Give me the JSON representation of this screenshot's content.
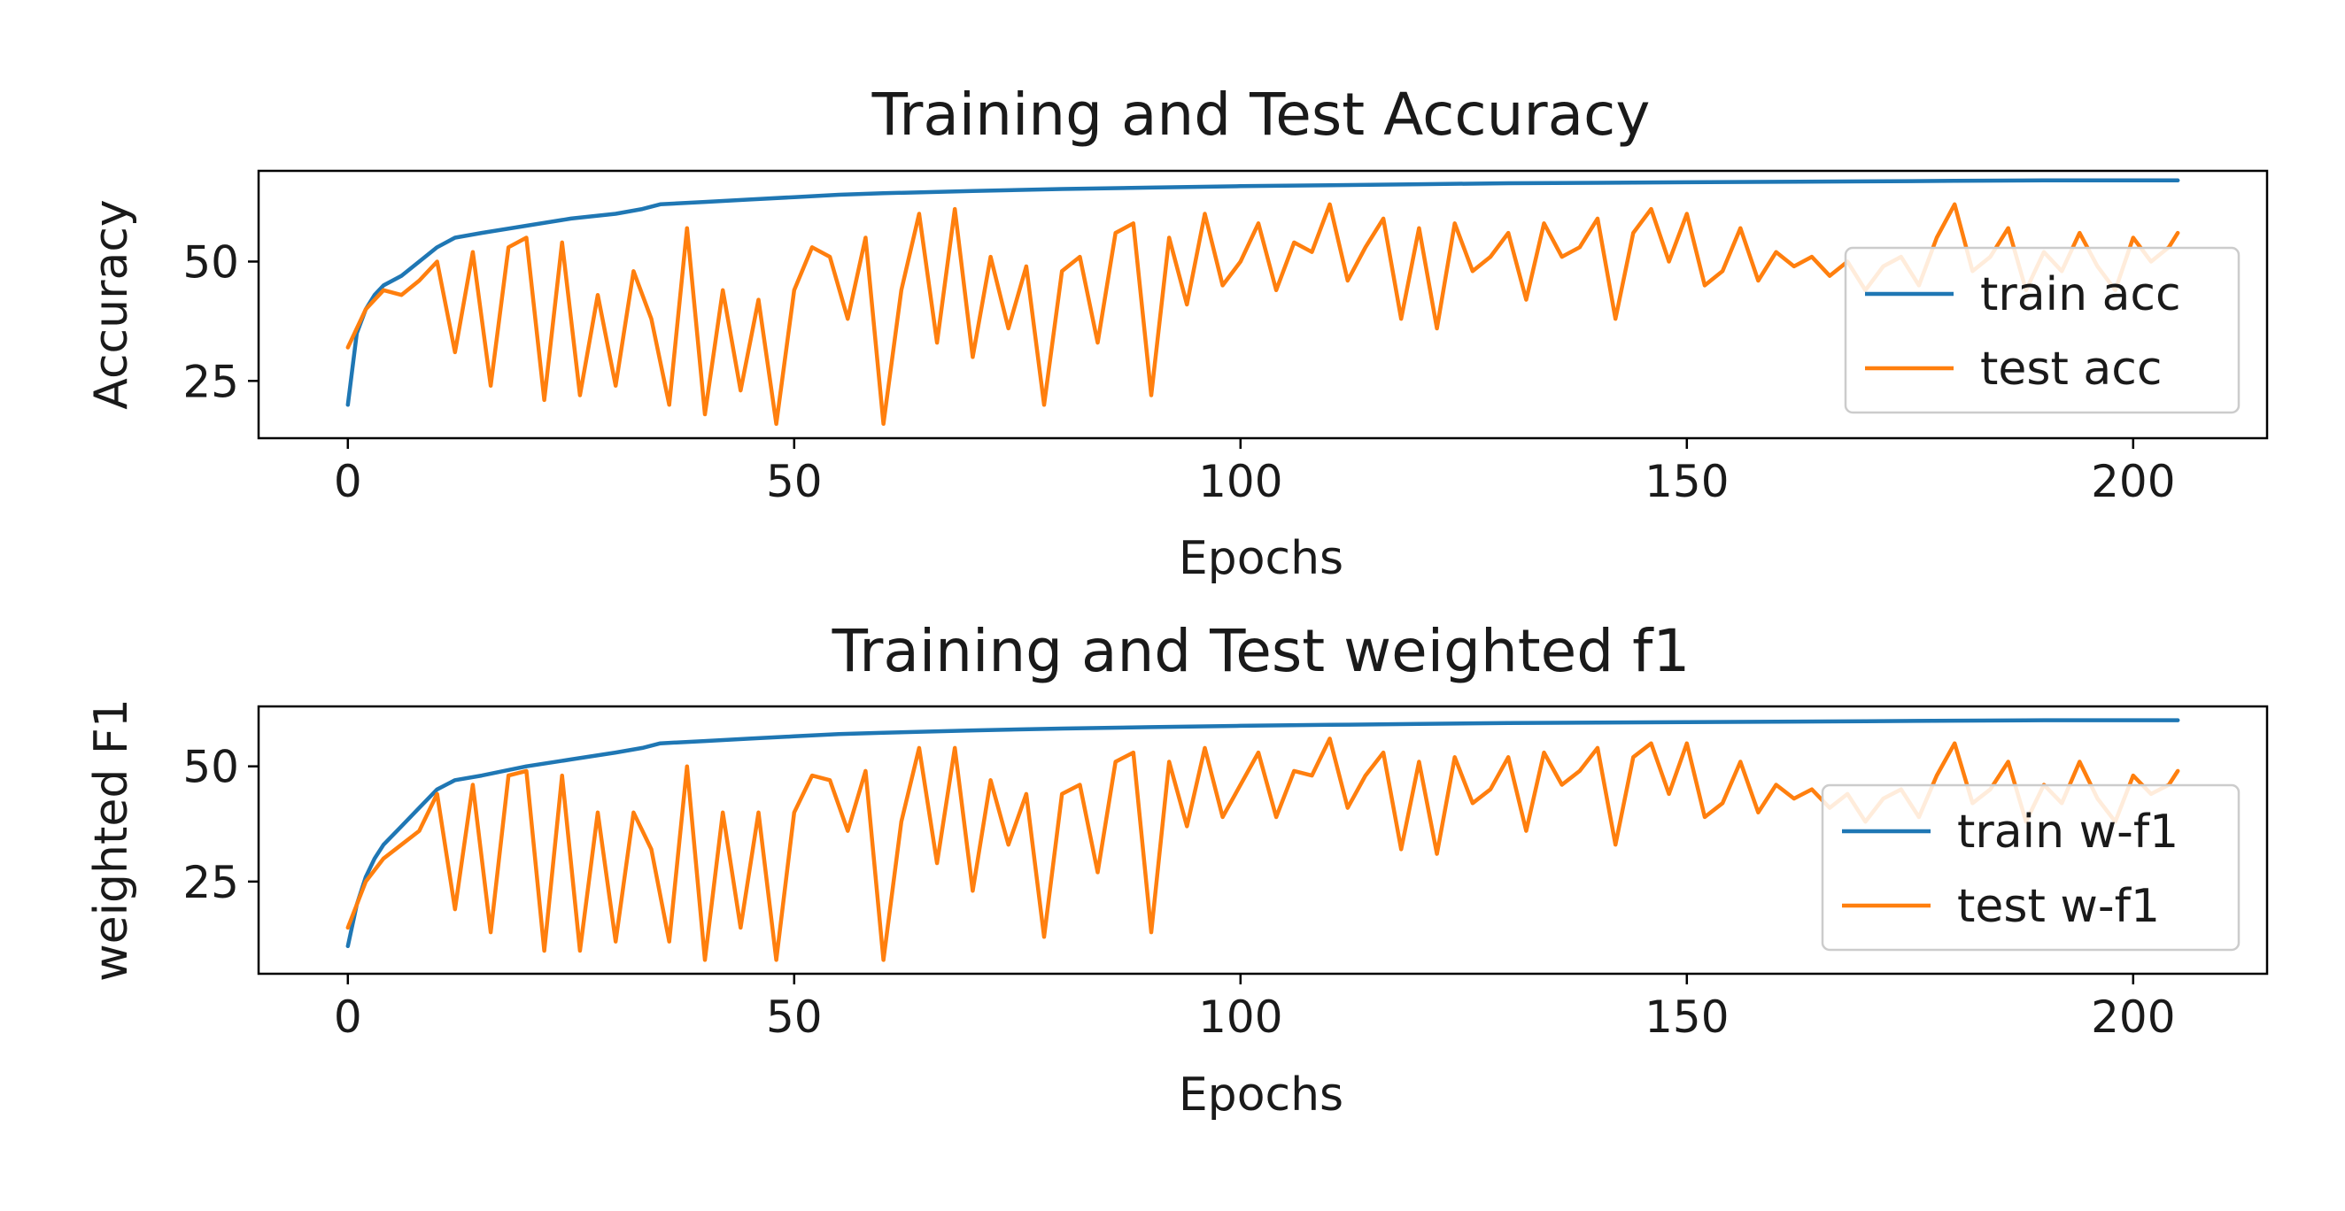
{
  "colors": {
    "train": "#1f77b4",
    "test": "#ff7f0e"
  },
  "chart_data": [
    {
      "type": "line",
      "title": "Training and Test Accuracy",
      "xlabel": "Epochs",
      "ylabel": "Accuracy",
      "xlim": [
        -10,
        215
      ],
      "ylim": [
        13,
        69
      ],
      "xticks": [
        0,
        50,
        100,
        150,
        200
      ],
      "yticks": [
        25,
        50
      ],
      "legend_position": "right",
      "grid": false,
      "series": [
        {
          "name": "train acc",
          "color_key": "train",
          "x": [
            0,
            1,
            2,
            3,
            4,
            6,
            8,
            10,
            12,
            15,
            20,
            25,
            30,
            33,
            35,
            40,
            45,
            50,
            55,
            60,
            70,
            80,
            90,
            100,
            110,
            120,
            130,
            140,
            150,
            160,
            170,
            180,
            190,
            200,
            205
          ],
          "y": [
            20,
            35,
            40,
            43,
            45,
            47,
            50,
            53,
            55,
            56,
            57.5,
            59,
            60,
            61,
            62,
            62.5,
            63,
            63.5,
            64,
            64.3,
            64.8,
            65.2,
            65.5,
            65.8,
            66,
            66.2,
            66.4,
            66.5,
            66.6,
            66.7,
            66.8,
            66.9,
            67,
            67,
            67
          ]
        },
        {
          "name": "test acc",
          "color_key": "test",
          "x": [
            0,
            2,
            4,
            6,
            8,
            10,
            12,
            14,
            16,
            18,
            20,
            22,
            24,
            26,
            28,
            30,
            32,
            34,
            36,
            38,
            40,
            42,
            44,
            46,
            48,
            50,
            52,
            54,
            56,
            58,
            60,
            62,
            64,
            66,
            68,
            70,
            72,
            74,
            76,
            78,
            80,
            82,
            84,
            86,
            88,
            90,
            92,
            94,
            96,
            98,
            100,
            102,
            104,
            106,
            108,
            110,
            112,
            114,
            116,
            118,
            120,
            122,
            124,
            126,
            128,
            130,
            132,
            134,
            136,
            138,
            140,
            142,
            144,
            146,
            148,
            150,
            152,
            154,
            156,
            158,
            160,
            162,
            164,
            166,
            168,
            170,
            172,
            174,
            176,
            178,
            180,
            182,
            184,
            186,
            188,
            190,
            192,
            194,
            196,
            198,
            200,
            202,
            204,
            205
          ],
          "y": [
            32,
            40,
            44,
            43,
            46,
            50,
            31,
            52,
            24,
            53,
            55,
            21,
            54,
            22,
            43,
            24,
            48,
            38,
            20,
            57,
            18,
            44,
            23,
            42,
            16,
            44,
            53,
            51,
            38,
            55,
            16,
            44,
            60,
            33,
            61,
            30,
            51,
            36,
            49,
            20,
            48,
            51,
            33,
            56,
            58,
            22,
            55,
            41,
            60,
            45,
            50,
            58,
            44,
            54,
            52,
            62,
            46,
            53,
            59,
            38,
            57,
            36,
            58,
            48,
            51,
            56,
            42,
            58,
            51,
            53,
            59,
            38,
            56,
            61,
            50,
            60,
            45,
            48,
            57,
            46,
            52,
            49,
            51,
            47,
            50,
            44,
            49,
            51,
            45,
            55,
            62,
            48,
            51,
            57,
            44,
            52,
            48,
            56,
            49,
            44,
            55,
            50,
            53,
            56
          ]
        }
      ]
    },
    {
      "type": "line",
      "title": "Training and Test weighted f1",
      "xlabel": "Epochs",
      "ylabel": "weighted F1",
      "xlim": [
        -10,
        215
      ],
      "ylim": [
        5,
        63
      ],
      "xticks": [
        0,
        50,
        100,
        150,
        200
      ],
      "yticks": [
        25,
        50
      ],
      "legend_position": "right",
      "grid": false,
      "series": [
        {
          "name": "train w-f1",
          "color_key": "train",
          "x": [
            0,
            1,
            2,
            3,
            4,
            6,
            8,
            10,
            12,
            15,
            20,
            25,
            30,
            33,
            35,
            40,
            45,
            50,
            55,
            60,
            70,
            80,
            90,
            100,
            110,
            120,
            130,
            140,
            150,
            160,
            170,
            180,
            190,
            200,
            205
          ],
          "y": [
            11,
            20,
            26,
            30,
            33,
            37,
            41,
            45,
            47,
            48,
            50,
            51.5,
            53,
            54,
            55,
            55.5,
            56,
            56.5,
            57,
            57.3,
            57.8,
            58.2,
            58.5,
            58.8,
            59,
            59.2,
            59.4,
            59.5,
            59.6,
            59.7,
            59.8,
            59.9,
            60,
            60,
            60
          ]
        },
        {
          "name": "test w-f1",
          "color_key": "test",
          "x": [
            0,
            2,
            4,
            6,
            8,
            10,
            12,
            14,
            16,
            18,
            20,
            22,
            24,
            26,
            28,
            30,
            32,
            34,
            36,
            38,
            40,
            42,
            44,
            46,
            48,
            50,
            52,
            54,
            56,
            58,
            60,
            62,
            64,
            66,
            68,
            70,
            72,
            74,
            76,
            78,
            80,
            82,
            84,
            86,
            88,
            90,
            92,
            94,
            96,
            98,
            100,
            102,
            104,
            106,
            108,
            110,
            112,
            114,
            116,
            118,
            120,
            122,
            124,
            126,
            128,
            130,
            132,
            134,
            136,
            138,
            140,
            142,
            144,
            146,
            148,
            150,
            152,
            154,
            156,
            158,
            160,
            162,
            164,
            166,
            168,
            170,
            172,
            174,
            176,
            178,
            180,
            182,
            184,
            186,
            188,
            190,
            192,
            194,
            196,
            198,
            200,
            202,
            204,
            205
          ],
          "y": [
            15,
            25,
            30,
            33,
            36,
            44,
            19,
            46,
            14,
            48,
            49,
            10,
            48,
            10,
            40,
            12,
            40,
            32,
            12,
            50,
            8,
            40,
            15,
            40,
            8,
            40,
            48,
            47,
            36,
            49,
            8,
            38,
            54,
            29,
            54,
            23,
            47,
            33,
            44,
            13,
            44,
            46,
            27,
            51,
            53,
            14,
            51,
            37,
            54,
            39,
            46,
            53,
            39,
            49,
            48,
            56,
            41,
            48,
            53,
            32,
            51,
            31,
            52,
            42,
            45,
            52,
            36,
            53,
            46,
            49,
            54,
            33,
            52,
            55,
            44,
            55,
            39,
            42,
            51,
            40,
            46,
            43,
            45,
            41,
            44,
            38,
            43,
            45,
            39,
            48,
            55,
            42,
            45,
            51,
            38,
            46,
            42,
            51,
            43,
            38,
            48,
            44,
            46,
            49
          ]
        }
      ]
    }
  ]
}
